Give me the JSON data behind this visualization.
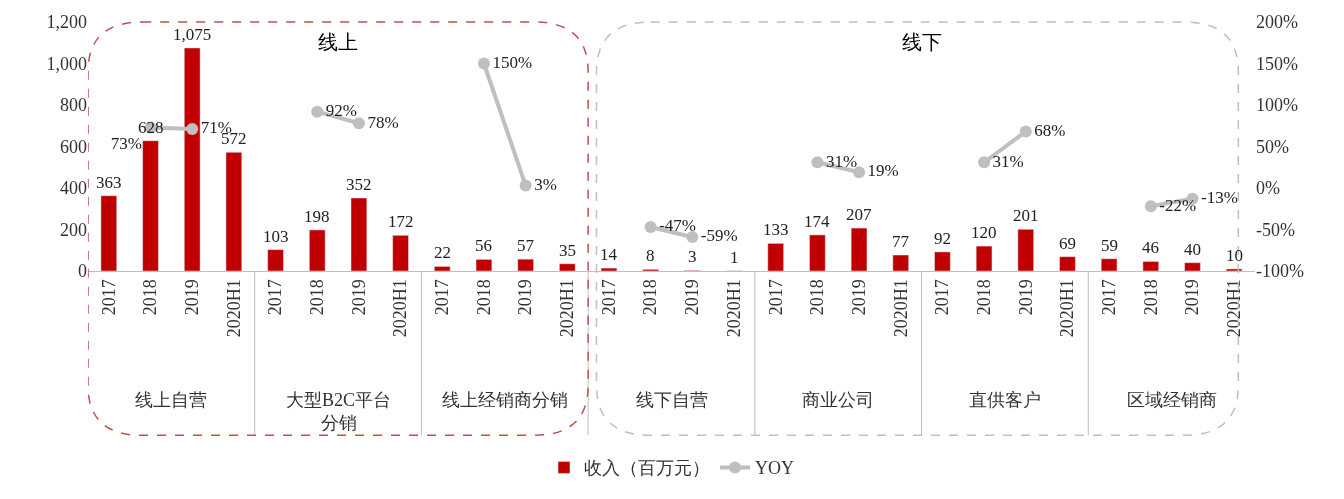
{
  "chart_data": {
    "type": "bar",
    "categories": [
      "2017",
      "2018",
      "2019",
      "2020H1",
      "2017",
      "2018",
      "2019",
      "2020H1",
      "2017",
      "2018",
      "2019",
      "2020H1",
      "2017",
      "2018",
      "2019",
      "2020H1",
      "2017",
      "2018",
      "2019",
      "2020H1",
      "2017",
      "2018",
      "2019",
      "2020H1",
      "2017",
      "2018",
      "2019",
      "2020H1"
    ],
    "series": [
      {
        "name": "收入（百万元）",
        "color": "#c00000",
        "values": [
          363,
          628,
          1075,
          572,
          103,
          198,
          352,
          172,
          22,
          56,
          57,
          35,
          14,
          8,
          3,
          1,
          133,
          174,
          207,
          77,
          92,
          120,
          201,
          69,
          59,
          46,
          40,
          10
        ],
        "value_labels": [
          "363",
          "628",
          "1,075",
          "572",
          "103",
          "198",
          "352",
          "172",
          "22",
          "56",
          "57",
          "35",
          "14",
          "8",
          "3",
          "1",
          "133",
          "174",
          "207",
          "77",
          "92",
          "120",
          "201",
          "69",
          "59",
          "46",
          "40",
          "10"
        ]
      },
      {
        "name": "YOY",
        "type": "line",
        "axis": "y2",
        "color": "#bfbfbf",
        "marker": "circle",
        "values": [
          null,
          73,
          71,
          null,
          null,
          92,
          78,
          null,
          null,
          150,
          3,
          null,
          null,
          -47,
          -59,
          null,
          null,
          31,
          19,
          null,
          null,
          31,
          68,
          null,
          null,
          -22,
          -13,
          null
        ],
        "value_labels": [
          null,
          "73%",
          "71%",
          null,
          null,
          "92%",
          "78%",
          null,
          null,
          "150%",
          "3%",
          null,
          null,
          "-47%",
          "-59%",
          null,
          null,
          "31%",
          "19%",
          null,
          null,
          "31%",
          "68%",
          null,
          null,
          "-22%",
          "-13%",
          null
        ]
      }
    ],
    "ylim": [
      0,
      1200
    ],
    "yticks": [
      0,
      200,
      400,
      600,
      800,
      {
        "value": 1000,
        "label": "1,000"
      },
      {
        "value": 1200,
        "label": "1,200"
      }
    ],
    "y2lim": [
      -100,
      200
    ],
    "y2ticks": [
      {
        "value": -100,
        "label": "-100%"
      },
      {
        "value": -50,
        "label": "-50%"
      },
      {
        "value": 0,
        "label": "0%"
      },
      {
        "value": 50,
        "label": "50%"
      },
      {
        "value": 100,
        "label": "100%"
      },
      {
        "value": 150,
        "label": "150%"
      },
      {
        "value": 200,
        "label": "200%"
      }
    ],
    "annotations": [
      "线上",
      "线下",
      "线上自营",
      "大型B2C平台分销",
      "线上经销商分销",
      "线下自营",
      "商业公司",
      "直供客户",
      "区域经销商"
    ],
    "legend": "bottom"
  }
}
